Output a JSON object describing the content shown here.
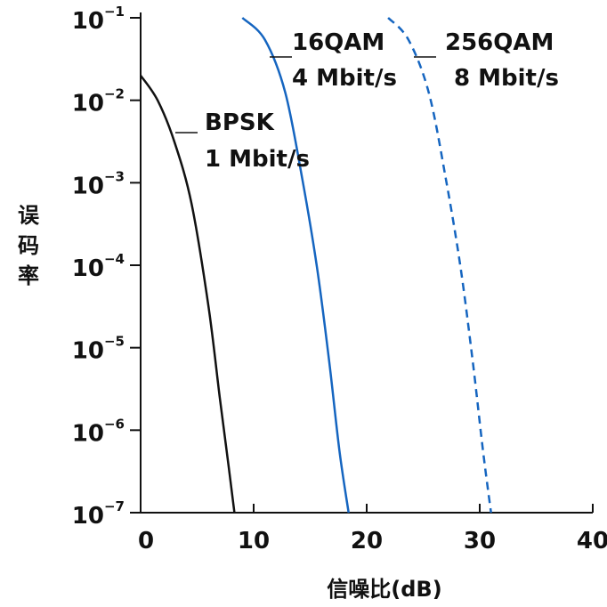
{
  "chart_data": {
    "type": "line",
    "title": "",
    "xlabel": "信噪比(dB)",
    "ylabel": "误码率",
    "xlim": [
      0,
      40
    ],
    "x_ticks": [
      0,
      10,
      20,
      30,
      40
    ],
    "x_tick_labels": [
      "0",
      "10",
      "20",
      "30",
      "40"
    ],
    "ylim": [
      1e-07,
      0.1
    ],
    "y_scale": "log",
    "y_ticks": [
      0.1,
      0.01,
      0.001,
      0.0001,
      1e-05,
      1e-06,
      1e-07
    ],
    "y_tick_labels": [
      {
        "base": "10",
        "exp": "−1"
      },
      {
        "base": "10",
        "exp": "−2"
      },
      {
        "base": "10",
        "exp": "−3"
      },
      {
        "base": "10",
        "exp": "−4"
      },
      {
        "base": "10",
        "exp": "−5"
      },
      {
        "base": "10",
        "exp": "−6"
      },
      {
        "base": "10",
        "exp": "−7"
      }
    ],
    "grid": false,
    "series": [
      {
        "line1": "BPSK",
        "line2": "1 Mbit/s",
        "color": "#111111",
        "dash": "solid",
        "x": [
          0,
          1.5,
          3,
          4.5,
          6,
          7,
          7.8,
          8.3
        ],
        "y": [
          0.02,
          0.01,
          0.0031,
          0.00056,
          3.2e-05,
          2.5e-06,
          3.5e-07,
          1e-07
        ]
      },
      {
        "line1": "16QAM",
        "line2": "4 Mbit/s",
        "color": "#1565C0",
        "dash": "solid",
        "x": [
          9.0,
          11.0,
          12.8,
          14.3,
          15.6,
          16.7,
          17.6,
          18.4
        ],
        "y": [
          0.1,
          0.054,
          0.0123,
          0.00112,
          9.5e-05,
          6.5e-06,
          5.5e-07,
          1e-07
        ]
      },
      {
        "line1": "256QAM",
        "line2": "8 Mbit/s",
        "color": "#1565C0",
        "dash": "dashed",
        "x": [
          21.9,
          23.7,
          25.5,
          27.0,
          28.3,
          29.4,
          30.3,
          31.0
        ],
        "y": [
          0.1,
          0.054,
          0.0123,
          0.00112,
          9.5e-05,
          6.5e-06,
          5.5e-07,
          1e-07
        ]
      }
    ]
  }
}
